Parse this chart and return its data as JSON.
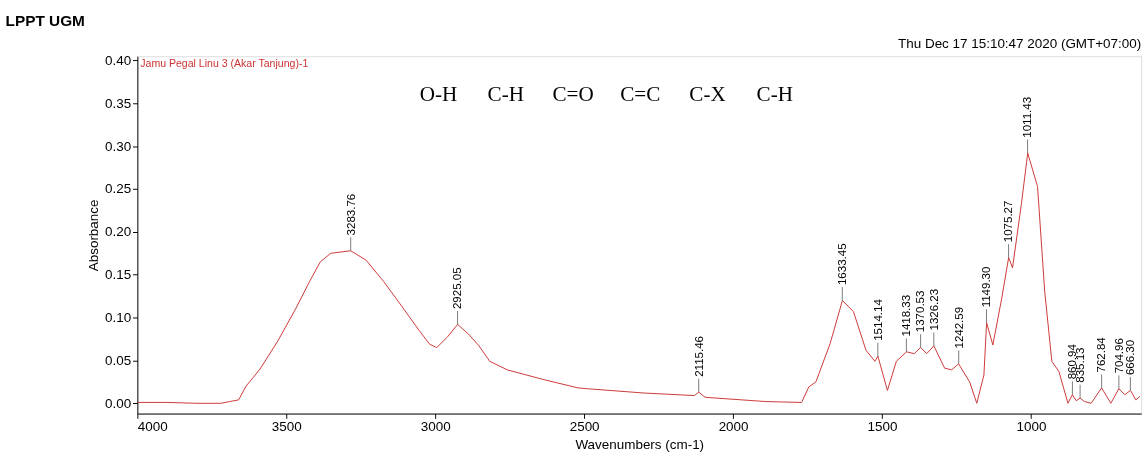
{
  "chart_data": {
    "type": "line",
    "title": "LPPT UGM",
    "xlabel": "Wavenumbers (cm-1)",
    "ylabel": "Absorbance",
    "xlim": [
      4000,
      630
    ],
    "xticks": [
      4000,
      3500,
      3000,
      2500,
      2000,
      1500,
      1000
    ],
    "ylim": [
      -0.012,
      0.405
    ],
    "yticks": [
      {
        "value": 0,
        "label": "0.00"
      },
      {
        "value": 0.05,
        "label": "0.05"
      },
      {
        "value": 0.1,
        "label": "0.10"
      },
      {
        "value": 0.15,
        "label": "0.15"
      },
      {
        "value": 0.2,
        "label": "0.20"
      },
      {
        "value": 0.25,
        "label": "0.25"
      },
      {
        "value": 0.3,
        "label": "0.30"
      },
      {
        "value": 0.35,
        "label": "0.35"
      },
      {
        "value": 0.4,
        "label": "0.40"
      }
    ],
    "grid": false,
    "marker": "none",
    "line_style": "solid",
    "series": [
      {
        "name": "Jamu Pegal Linu 3 (Akar Tanjung)-1",
        "color": "#cc3333",
        "x": [
          4000,
          3900,
          3800,
          3720,
          3690,
          3660,
          3635,
          3588,
          3528,
          3469,
          3422,
          3386,
          3351,
          3284,
          3232,
          3173,
          3114,
          3054,
          3019,
          2995,
          2960,
          2925,
          2889,
          2853,
          2817,
          2758,
          2640,
          2521,
          2490,
          2300,
          2130,
          2115,
          2094,
          1890,
          1770,
          1746,
          1722,
          1674,
          1633,
          1596,
          1554,
          1524,
          1514,
          1482,
          1452,
          1418,
          1392,
          1371,
          1350,
          1326,
          1290,
          1266,
          1243,
          1206,
          1182,
          1158,
          1149,
          1128,
          1098,
          1075,
          1062,
          1032,
          1011,
          978,
          954,
          930,
          906,
          876,
          861,
          848,
          835,
          820,
          798,
          763,
          732,
          705,
          685,
          666,
          648,
          634
        ],
        "values": [
          0.001,
          0.001,
          0.0,
          0.0,
          0.002,
          0.004,
          0.02,
          0.04,
          0.073,
          0.11,
          0.142,
          0.165,
          0.175,
          0.178,
          0.167,
          0.142,
          0.114,
          0.085,
          0.069,
          0.065,
          0.077,
          0.092,
          0.081,
          0.067,
          0.049,
          0.039,
          0.028,
          0.018,
          0.017,
          0.012,
          0.009,
          0.013,
          0.007,
          0.002,
          0.001,
          0.019,
          0.025,
          0.07,
          0.12,
          0.107,
          0.062,
          0.049,
          0.055,
          0.015,
          0.049,
          0.06,
          0.058,
          0.065,
          0.058,
          0.067,
          0.041,
          0.039,
          0.046,
          0.025,
          0.0,
          0.033,
          0.094,
          0.068,
          0.123,
          0.17,
          0.158,
          0.233,
          0.292,
          0.253,
          0.131,
          0.049,
          0.037,
          0.0,
          0.01,
          0.003,
          0.006,
          0.002,
          0.0,
          0.018,
          0.0,
          0.017,
          0.01,
          0.015,
          0.004,
          0.008
        ]
      }
    ],
    "annotations": [
      "Thu Dec 17 15:10:47 2020 (GMT+07:00)",
      {
        "text": "3283.76",
        "x": 3283.76,
        "y": 0.178
      },
      {
        "text": "2925.05",
        "x": 2925.05,
        "y": 0.092
      },
      {
        "text": "2115.46",
        "x": 2115.46,
        "y": 0.013
      },
      {
        "text": "1633.45",
        "x": 1633.45,
        "y": 0.12
      },
      {
        "text": "1514.14",
        "x": 1514.14,
        "y": 0.055
      },
      {
        "text": "1418.33",
        "x": 1418.33,
        "y": 0.06
      },
      {
        "text": "1370.53",
        "x": 1370.53,
        "y": 0.065
      },
      {
        "text": "1326.23",
        "x": 1326.23,
        "y": 0.067
      },
      {
        "text": "1242.59",
        "x": 1242.59,
        "y": 0.046
      },
      {
        "text": "1149.30",
        "x": 1149.3,
        "y": 0.094
      },
      {
        "text": "1075.27",
        "x": 1075.27,
        "y": 0.17
      },
      {
        "text": "1011.43",
        "x": 1011.43,
        "y": 0.292
      },
      {
        "text": "860.94",
        "x": 860.94,
        "y": 0.01
      },
      {
        "text": "835.13",
        "x": 835.13,
        "y": 0.006
      },
      {
        "text": "762.84",
        "x": 762.84,
        "y": 0.018
      },
      {
        "text": "704.96",
        "x": 704.96,
        "y": 0.017
      },
      {
        "text": "666.30",
        "x": 666.3,
        "y": 0.015
      },
      "O-H",
      "C-H",
      "C=O",
      "C=C",
      "C-X",
      "C-H"
    ]
  }
}
